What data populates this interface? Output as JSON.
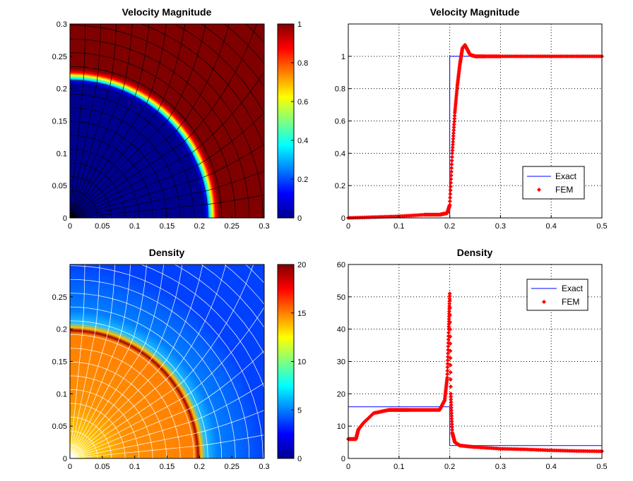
{
  "chart_data": [
    {
      "panel": "top-left",
      "type": "heatmap",
      "title": "Velocity Magnitude",
      "xlim": [
        0,
        0.3
      ],
      "ylim": [
        0,
        0.3
      ],
      "xticks": [
        "0",
        "0.05",
        "0.1",
        "0.15",
        "0.2",
        "0.25",
        "0.3"
      ],
      "yticks": [
        "0",
        "0.05",
        "0.1",
        "0.15",
        "0.2",
        "0.25",
        "0.3"
      ],
      "field": {
        "inside_radius": 0.21,
        "inside_value": 0,
        "outside_value": 1
      },
      "mesh_color": "#000000",
      "colorbar": {
        "range": [
          0,
          1
        ],
        "ticks": [
          "0",
          "0.2",
          "0.4",
          "0.6",
          "0.8",
          "1"
        ]
      }
    },
    {
      "panel": "top-right",
      "type": "line",
      "title": "Velocity Magnitude",
      "xlim": [
        0,
        0.5
      ],
      "ylim": [
        0,
        1.2
      ],
      "xticks": [
        "0",
        "0.1",
        "0.2",
        "0.3",
        "0.4",
        "0.5"
      ],
      "yticks": [
        "0",
        "0.2",
        "0.4",
        "0.6",
        "0.8",
        "1"
      ],
      "grid": true,
      "legend_position": "bottom-right",
      "series": [
        {
          "name": "Exact",
          "color": "#0000ff",
          "style": "line",
          "x": [
            0,
            0.2,
            0.2,
            0.5
          ],
          "y": [
            0,
            0,
            1,
            1
          ]
        },
        {
          "name": "FEM",
          "color": "#ff0000",
          "style": "markers",
          "x": [
            0,
            0.05,
            0.1,
            0.15,
            0.18,
            0.195,
            0.2,
            0.205,
            0.21,
            0.215,
            0.22,
            0.225,
            0.23,
            0.235,
            0.24,
            0.25,
            0.27,
            0.3,
            0.35,
            0.4,
            0.45,
            0.5
          ],
          "y": [
            0,
            0.005,
            0.01,
            0.02,
            0.02,
            0.03,
            0.08,
            0.4,
            0.65,
            0.82,
            0.95,
            1.05,
            1.07,
            1.04,
            1.01,
            1.0,
            1.0,
            1.0,
            1.0,
            1.0,
            1.0,
            1.0
          ]
        }
      ]
    },
    {
      "panel": "bottom-left",
      "type": "heatmap",
      "title": "Density",
      "xlim": [
        0,
        0.3
      ],
      "ylim": [
        0,
        0.3
      ],
      "xticks": [
        "0",
        "0.05",
        "0.1",
        "0.15",
        "0.2",
        "0.25",
        "0.3"
      ],
      "yticks": [
        "0",
        "0.05",
        "0.1",
        "0.15",
        "0.2",
        "0.25"
      ],
      "field": {
        "inside_radius": 0.2,
        "inside_value": 15,
        "outside_value": 3,
        "shock_value": 19
      },
      "mesh_color": "#ffffff",
      "colorbar": {
        "range": [
          0,
          20
        ],
        "ticks": [
          "0",
          "5",
          "10",
          "15",
          "20"
        ]
      }
    },
    {
      "panel": "bottom-right",
      "type": "line",
      "title": "Density",
      "xlim": [
        0,
        0.5
      ],
      "ylim": [
        0,
        60
      ],
      "xticks": [
        "0",
        "0.1",
        "0.2",
        "0.3",
        "0.4",
        "0.5"
      ],
      "yticks": [
        "0",
        "10",
        "20",
        "30",
        "40",
        "50",
        "60"
      ],
      "grid": true,
      "legend_position": "top-right",
      "series": [
        {
          "name": "Exact",
          "color": "#0000ff",
          "style": "line",
          "x": [
            0,
            0.2,
            0.2,
            0.5
          ],
          "y": [
            16,
            16,
            4,
            4
          ]
        },
        {
          "name": "FEM",
          "color": "#ff0000",
          "style": "markers",
          "x": [
            0,
            0.015,
            0.02,
            0.03,
            0.05,
            0.08,
            0.1,
            0.12,
            0.15,
            0.18,
            0.19,
            0.195,
            0.198,
            0.2,
            0.202,
            0.205,
            0.21,
            0.22,
            0.25,
            0.3,
            0.35,
            0.4,
            0.45,
            0.5
          ],
          "y": [
            6,
            6,
            9,
            11,
            14,
            15,
            15,
            15,
            15,
            15,
            18,
            25,
            40,
            51,
            20,
            8,
            5,
            4,
            3.5,
            3,
            2.8,
            2.5,
            2.3,
            2.2
          ]
        }
      ]
    }
  ]
}
